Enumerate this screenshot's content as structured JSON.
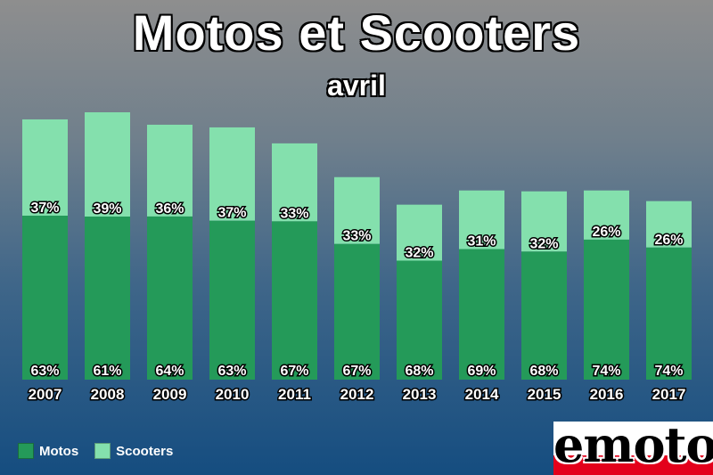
{
  "title": "Motos et Scooters",
  "subtitle": "avril",
  "colors": {
    "motos": "#249a59",
    "scooters": "#84e0ad"
  },
  "legend": {
    "motos_label": "Motos",
    "scooters_label": "Scooters"
  },
  "logo": {
    "text": "emoto"
  },
  "chart_data": {
    "type": "bar",
    "stacked": true,
    "categories": [
      "2007",
      "2008",
      "2009",
      "2010",
      "2011",
      "2012",
      "2013",
      "2014",
      "2015",
      "2016",
      "2017"
    ],
    "series": [
      {
        "name": "Motos",
        "values": [
          63,
          61,
          64,
          63,
          67,
          67,
          68,
          69,
          68,
          74,
          74
        ],
        "labels": [
          "63%",
          "61%",
          "64%",
          "63%",
          "67%",
          "67%",
          "68%",
          "69%",
          "68%",
          "74%",
          "74%"
        ]
      },
      {
        "name": "Scooters",
        "values": [
          37,
          39,
          36,
          37,
          33,
          33,
          32,
          31,
          32,
          26,
          26
        ],
        "labels": [
          "37%",
          "39%",
          "36%",
          "37%",
          "33%",
          "33%",
          "32%",
          "31%",
          "32%",
          "26%",
          "26%"
        ]
      }
    ],
    "relative_totals": [
      293,
      301,
      287,
      284,
      266,
      228,
      197,
      213,
      212,
      213,
      201
    ],
    "grid": false,
    "legend_position": "bottom-left"
  }
}
